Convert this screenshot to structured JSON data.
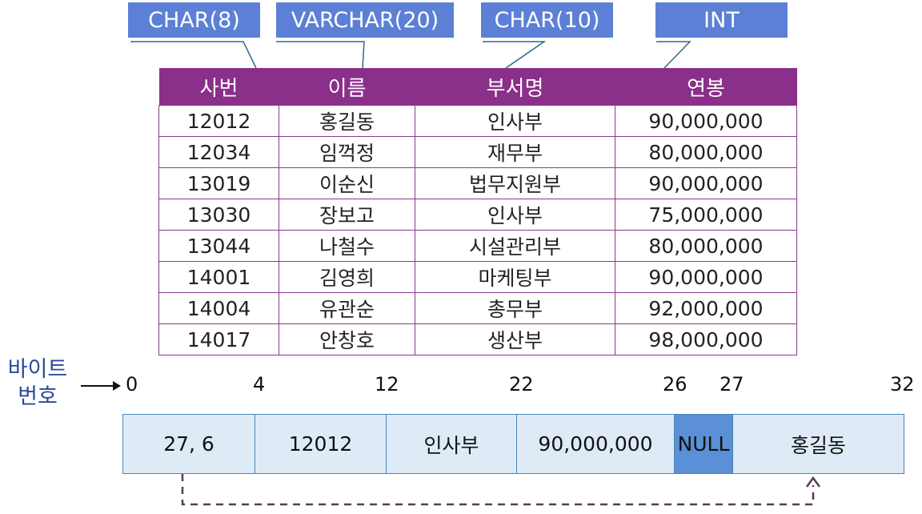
{
  "type_tags": [
    "CHAR(8)",
    "VARCHAR(20)",
    "CHAR(10)",
    "INT"
  ],
  "table": {
    "headers": [
      "사번",
      "이름",
      "부서명",
      "연봉"
    ],
    "rows": [
      [
        "12012",
        "홍길동",
        "인사부",
        "90,000,000"
      ],
      [
        "12034",
        "임꺽정",
        "재무부",
        "80,000,000"
      ],
      [
        "13019",
        "이순신",
        "법무지원부",
        "90,000,000"
      ],
      [
        "13030",
        "장보고",
        "인사부",
        "75,000,000"
      ],
      [
        "13044",
        "나철수",
        "시설관리부",
        "80,000,000"
      ],
      [
        "14001",
        "김영희",
        "마케팅부",
        "90,000,000"
      ],
      [
        "14004",
        "유관순",
        "총무부",
        "92,000,000"
      ],
      [
        "14017",
        "안창호",
        "생산부",
        "98,000,000"
      ]
    ]
  },
  "byte_label": [
    "바이트",
    "번호"
  ],
  "byte_offsets": [
    "0",
    "4",
    "12",
    "22",
    "26",
    "27",
    "32"
  ],
  "record_cells": [
    "27, 6",
    "12012",
    "인사부",
    "90,000,000",
    "NULL",
    "홍길동"
  ],
  "colors": {
    "tag": "#5b80d6",
    "header": "#8a2f8a",
    "cell": "#deebf7",
    "null_cell": "#5b8fd6",
    "pointer": "#5a3a5a"
  }
}
